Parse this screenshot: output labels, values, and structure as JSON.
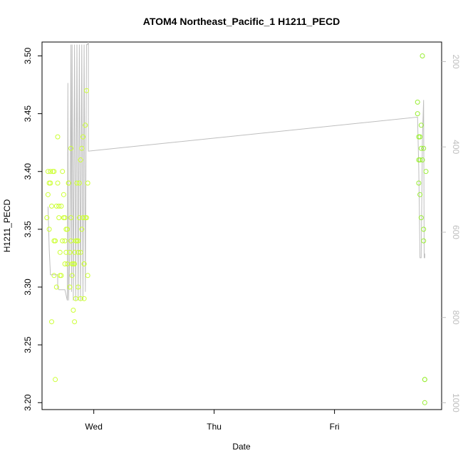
{
  "chart_data": {
    "type": "scatter",
    "title": "ATOM4 Northeast_Pacific_1 H1211_PECD",
    "xlabel": "Date",
    "ylabel": "H1211_PECD",
    "ylim": [
      3.194,
      3.512
    ],
    "y_ticks": [
      "3.20",
      "3.25",
      "3.30",
      "3.35",
      "3.40",
      "3.45",
      "3.50"
    ],
    "x_ticks": [
      {
        "label": "Wed",
        "day": 1.0
      },
      {
        "label": "Thu",
        "day": 2.0
      },
      {
        "label": "Fri",
        "day": 3.0
      }
    ],
    "xlim": [
      0.57,
      3.89
    ],
    "right_axis": {
      "ylim": [
        1016,
        154
      ],
      "ticks": [
        "200",
        "400",
        "600",
        "800",
        "1000"
      ]
    },
    "grid": false,
    "colors": {
      "points_early": "#ccff33",
      "points_late": "#99ee33",
      "pressure_line": "#bebebe"
    },
    "series": [
      {
        "points": [
          [
            0.61,
            3.36
          ],
          [
            0.62,
            3.38
          ],
          [
            0.62,
            3.4
          ],
          [
            0.63,
            3.39
          ],
          [
            0.63,
            3.35
          ],
          [
            0.64,
            3.4
          ],
          [
            0.64,
            3.39
          ],
          [
            0.65,
            3.37
          ],
          [
            0.65,
            3.27
          ],
          [
            0.66,
            3.4
          ],
          [
            0.67,
            3.4
          ],
          [
            0.67,
            3.34
          ],
          [
            0.67,
            3.31
          ],
          [
            0.68,
            3.22
          ],
          [
            0.68,
            3.34
          ],
          [
            0.69,
            3.37
          ],
          [
            0.69,
            3.3
          ],
          [
            0.7,
            3.43
          ],
          [
            0.7,
            3.39
          ],
          [
            0.71,
            3.36
          ],
          [
            0.71,
            3.37
          ],
          [
            0.72,
            3.31
          ],
          [
            0.72,
            3.33
          ],
          [
            0.73,
            3.31
          ],
          [
            0.73,
            3.37
          ],
          [
            0.74,
            3.4
          ],
          [
            0.74,
            3.34
          ],
          [
            0.75,
            3.36
          ],
          [
            0.75,
            3.38
          ],
          [
            0.76,
            3.36
          ],
          [
            0.76,
            3.32
          ],
          [
            0.77,
            3.33
          ],
          [
            0.77,
            3.35
          ],
          [
            0.78,
            3.35
          ],
          [
            0.78,
            3.32
          ],
          [
            0.79,
            3.39
          ],
          [
            0.79,
            3.39
          ],
          [
            0.8,
            3.33
          ],
          [
            0.8,
            3.3
          ],
          [
            0.81,
            3.34
          ],
          [
            0.81,
            3.42
          ],
          [
            0.82,
            3.32
          ],
          [
            0.82,
            3.31
          ],
          [
            0.83,
            3.28
          ],
          [
            0.83,
            3.32
          ],
          [
            0.84,
            3.27
          ],
          [
            0.84,
            3.33
          ],
          [
            0.85,
            3.29
          ],
          [
            0.85,
            3.34
          ],
          [
            0.86,
            3.39
          ],
          [
            0.86,
            3.34
          ],
          [
            0.87,
            3.3
          ],
          [
            0.87,
            3.34
          ],
          [
            0.88,
            3.36
          ],
          [
            0.88,
            3.39
          ],
          [
            0.89,
            3.41
          ],
          [
            0.89,
            3.33
          ],
          [
            0.9,
            3.42
          ],
          [
            0.9,
            3.35
          ],
          [
            0.91,
            3.43
          ],
          [
            0.91,
            3.36
          ],
          [
            0.92,
            3.32
          ],
          [
            0.92,
            3.29
          ],
          [
            0.93,
            3.36
          ],
          [
            0.93,
            3.44
          ],
          [
            0.94,
            3.47
          ],
          [
            0.94,
            3.36
          ],
          [
            0.95,
            3.31
          ],
          [
            0.95,
            3.39
          ],
          [
            0.89,
            3.29
          ],
          [
            0.87,
            3.33
          ],
          [
            0.81,
            3.36
          ],
          [
            0.76,
            3.34
          ],
          [
            0.84,
            3.32
          ],
          [
            0.92,
            3.32
          ]
        ]
      },
      {
        "points": [
          [
            3.69,
            3.46
          ],
          [
            3.69,
            3.45
          ],
          [
            3.7,
            3.43
          ],
          [
            3.7,
            3.39
          ],
          [
            3.7,
            3.41
          ],
          [
            3.71,
            3.43
          ],
          [
            3.71,
            3.41
          ],
          [
            3.71,
            3.38
          ],
          [
            3.72,
            3.42
          ],
          [
            3.72,
            3.44
          ],
          [
            3.72,
            3.36
          ],
          [
            3.73,
            3.5
          ],
          [
            3.73,
            3.41
          ],
          [
            3.74,
            3.34
          ],
          [
            3.74,
            3.42
          ],
          [
            3.74,
            3.35
          ],
          [
            3.75,
            3.22
          ],
          [
            3.75,
            3.22
          ],
          [
            3.75,
            3.2
          ],
          [
            3.76,
            3.4
          ]
        ]
      }
    ],
    "pressure_line": [
      [
        0.62,
        540
      ],
      [
        0.63,
        640
      ],
      [
        0.64,
        700
      ],
      [
        0.7,
        700
      ],
      [
        0.7,
        730
      ],
      [
        0.71,
        735
      ],
      [
        0.76,
        735
      ],
      [
        0.78,
        760
      ],
      [
        0.785,
        250
      ],
      [
        0.79,
        760
      ],
      [
        0.8,
        655
      ],
      [
        0.81,
        160
      ],
      [
        0.815,
        740
      ],
      [
        0.82,
        160
      ],
      [
        0.83,
        760
      ],
      [
        0.84,
        160
      ],
      [
        0.85,
        760
      ],
      [
        0.86,
        160
      ],
      [
        0.87,
        760
      ],
      [
        0.88,
        160
      ],
      [
        0.89,
        760
      ],
      [
        0.9,
        160
      ],
      [
        0.91,
        760
      ],
      [
        0.92,
        160
      ],
      [
        0.93,
        740
      ],
      [
        0.94,
        160
      ],
      [
        0.95,
        160
      ],
      [
        0.955,
        140
      ],
      [
        0.955,
        410
      ],
      [
        3.69,
        330
      ],
      [
        3.7,
        450
      ],
      [
        3.71,
        660
      ],
      [
        3.72,
        660
      ],
      [
        3.73,
        380
      ],
      [
        3.74,
        290
      ],
      [
        3.745,
        660
      ],
      [
        3.75,
        660
      ],
      [
        3.75,
        650
      ]
    ]
  }
}
